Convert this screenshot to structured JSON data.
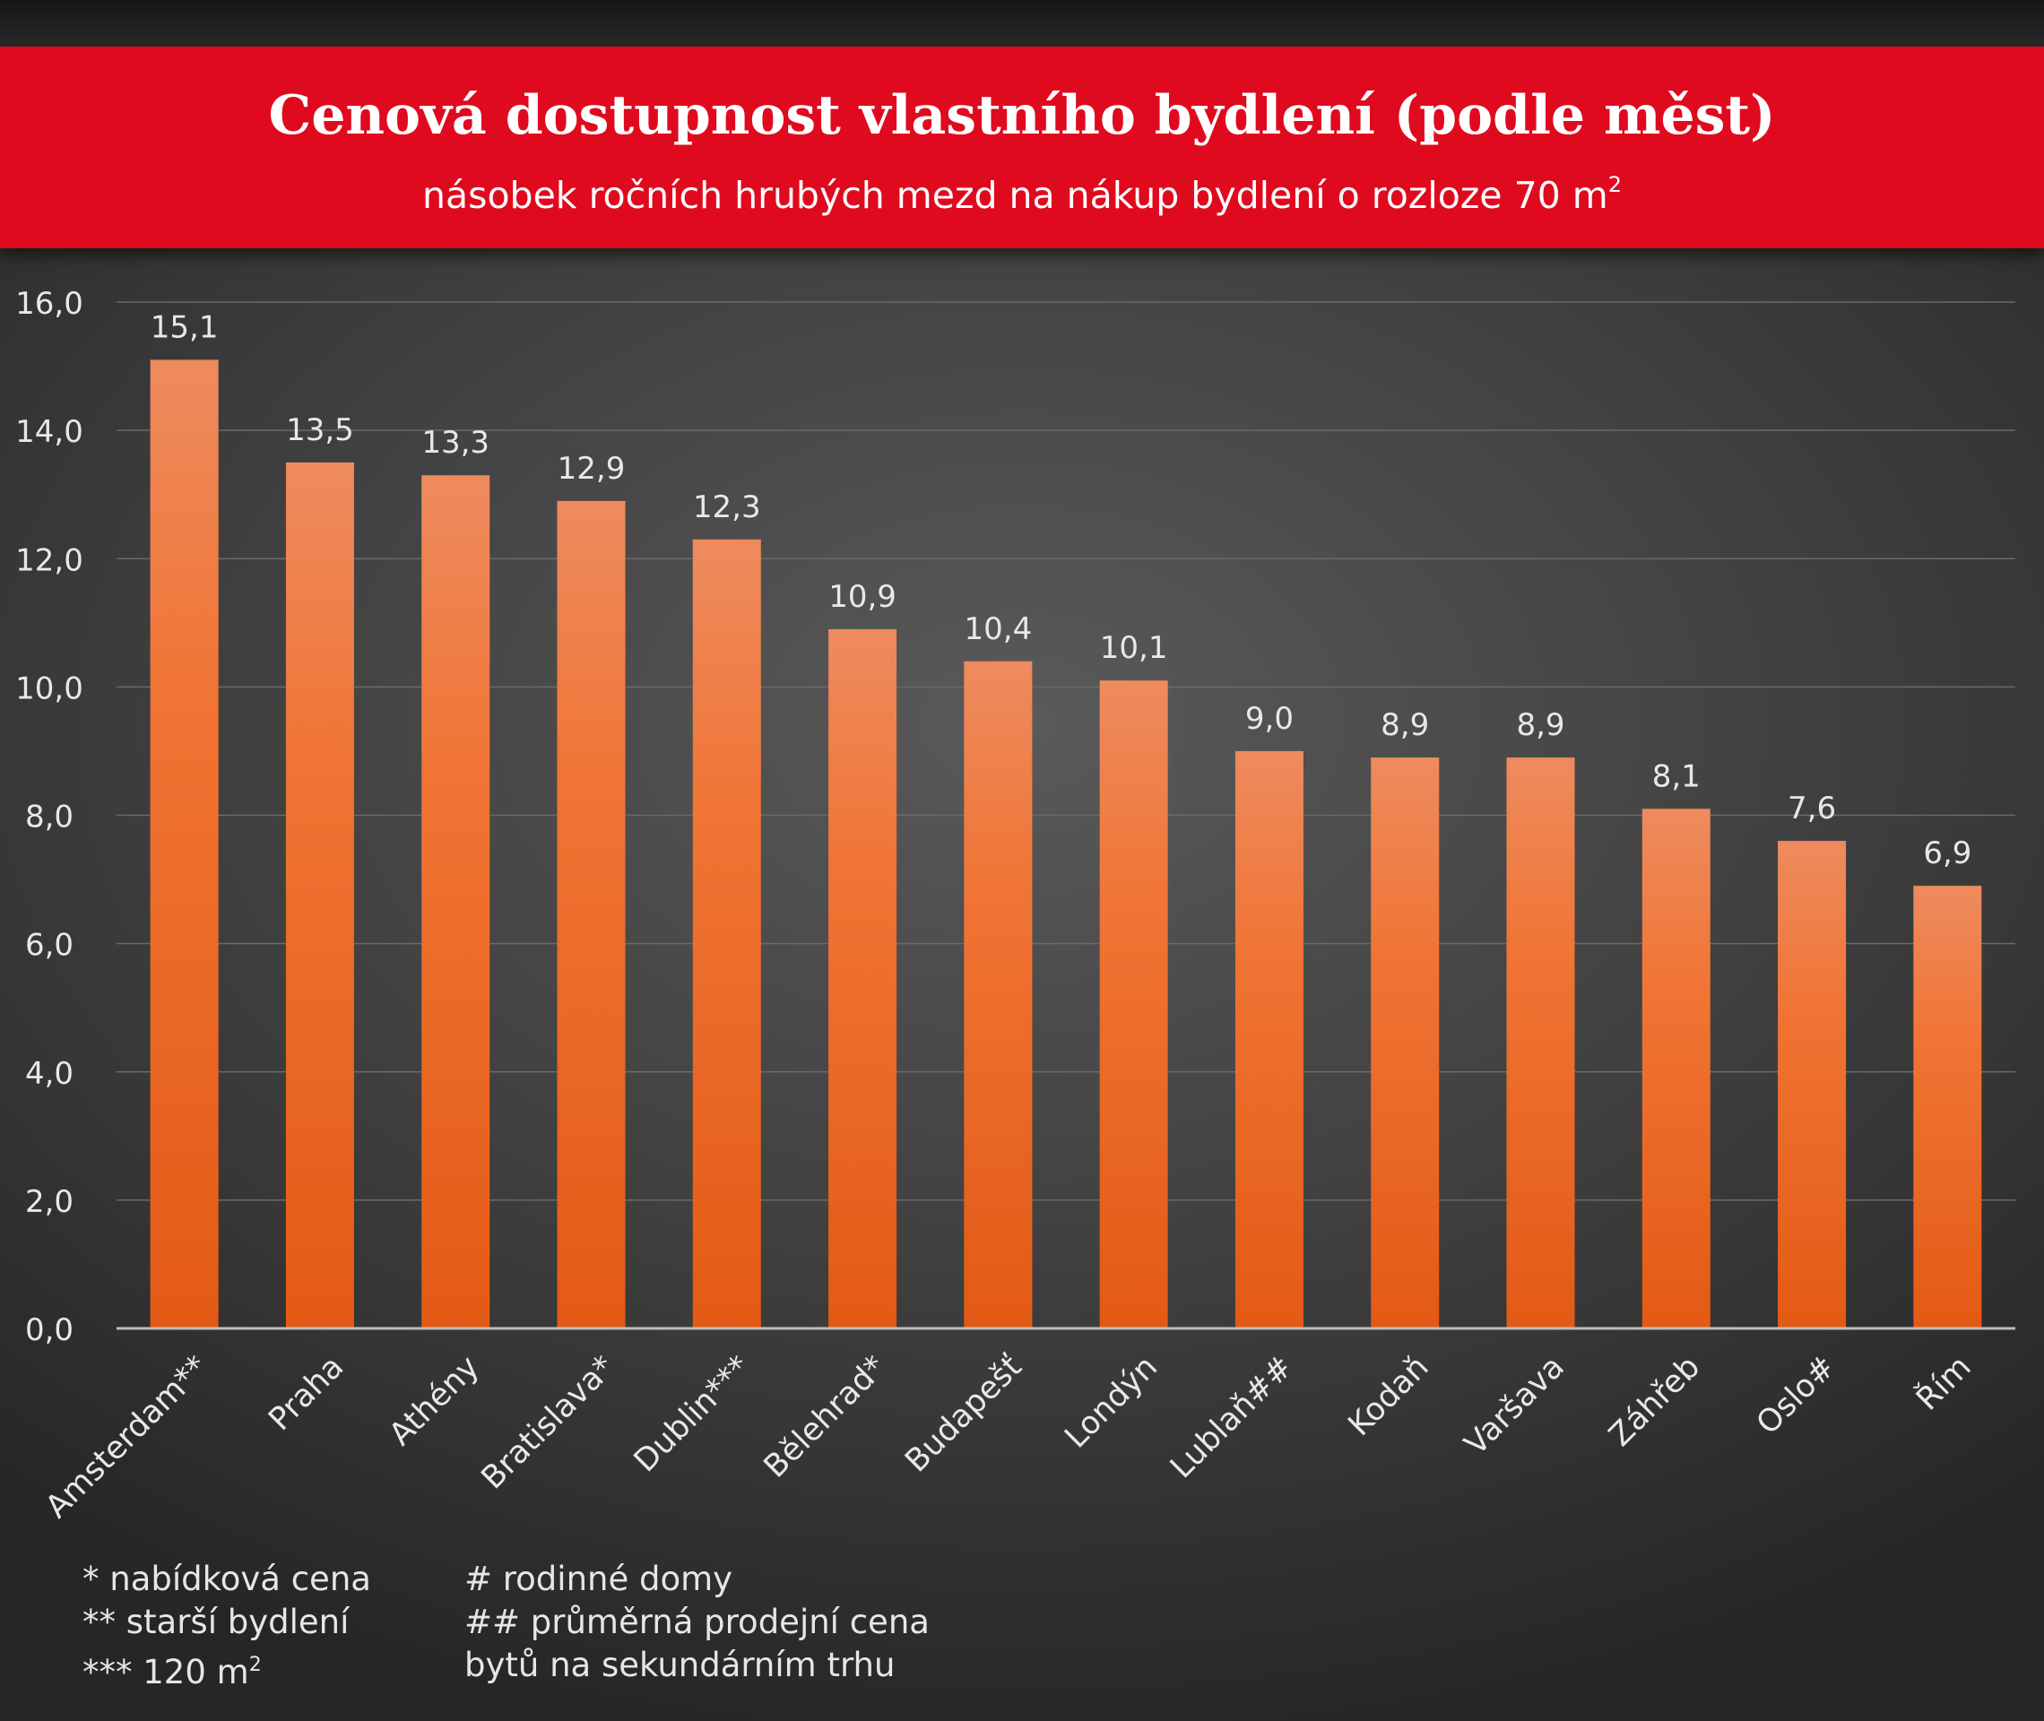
{
  "header": {
    "title": "Cenová dostupnost vlastního bydlení (podle měst)",
    "subtitle_main": "násobek ročních hrubých mezd na nákup bydlení o rozloze 70 m",
    "subtitle_sup": "2"
  },
  "colors": {
    "header_band": "#e00a1f",
    "bar_top": "#ee8b5e",
    "bar_bottom": "#e35a15",
    "gridline": "#6a6a6a",
    "text": "#e8e8e8"
  },
  "chart_data": {
    "type": "bar",
    "categories": [
      "Amsterdam**",
      "Praha",
      "Athény",
      "Bratislava*",
      "Dublin***",
      "Bělehrad*",
      "Budapešť",
      "Londýn",
      "Lublaň##",
      "Kodaň",
      "Varšava",
      "Záhřeb",
      "Oslo#",
      "Řím"
    ],
    "values": [
      15.1,
      13.5,
      13.3,
      12.9,
      12.3,
      10.9,
      10.4,
      10.1,
      9.0,
      8.9,
      8.9,
      8.1,
      7.6,
      6.9
    ],
    "value_labels": [
      "15,1",
      "13,5",
      "13,3",
      "12,9",
      "12,3",
      "10,9",
      "10,4",
      "10,1",
      "9,0",
      "8,9",
      "8,9",
      "8,1",
      "7,6",
      "6,9"
    ],
    "y_ticks": [
      0,
      2,
      4,
      6,
      8,
      10,
      12,
      14,
      16
    ],
    "y_tick_labels": [
      "0,0",
      "2,0",
      "4,0",
      "6,0",
      "8,0",
      "10,0",
      "12,0",
      "14,0",
      "16,0"
    ],
    "ylim": [
      0,
      16
    ],
    "grid": true,
    "legend": "none"
  },
  "notes": {
    "left": [
      "* nabídková cena",
      "** starší bydlení",
      "*** 120 m"
    ],
    "left_sup": "2",
    "right": [
      "# rodinné domy",
      "## průměrná prodejní cena",
      "bytů na sekundárním trhu"
    ]
  }
}
